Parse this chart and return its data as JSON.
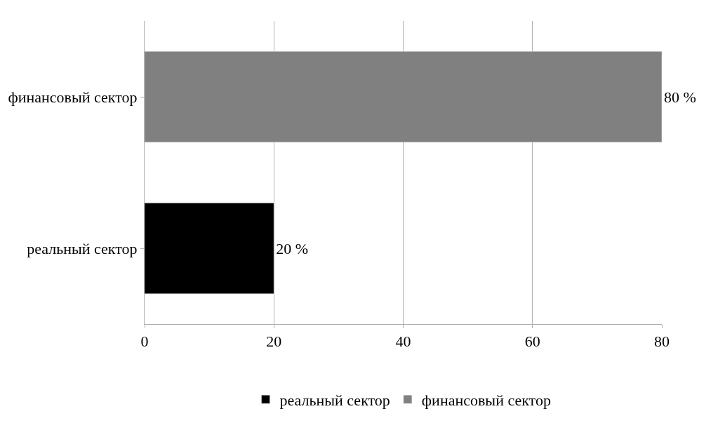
{
  "chart_data": {
    "type": "bar",
    "orientation": "horizontal",
    "categories": [
      "финансовый сектор",
      "реальный сектор"
    ],
    "series": [
      {
        "name": "реальный сектор",
        "color": "#000000",
        "values": [
          null,
          20
        ],
        "value_labels": [
          null,
          "20 %"
        ]
      },
      {
        "name": "финансовый сектор",
        "color": "#808080",
        "values": [
          80,
          null
        ],
        "value_labels": [
          "80 %",
          null
        ]
      }
    ],
    "xlim": [
      0,
      80
    ],
    "xticks": [
      0,
      20,
      40,
      60,
      80
    ],
    "grid": "x",
    "legend": "bottom"
  }
}
